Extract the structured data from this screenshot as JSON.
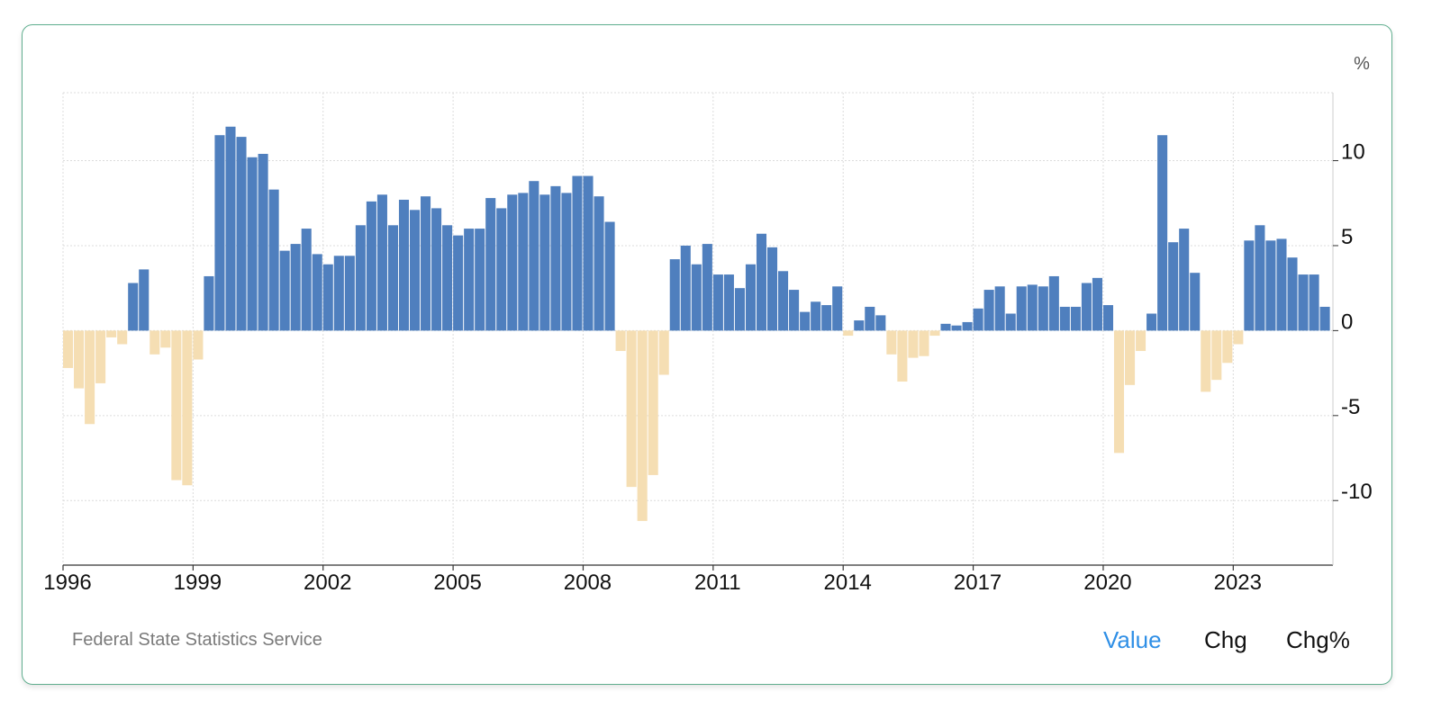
{
  "chart_data": {
    "type": "bar",
    "unit_label": "%",
    "x_ticks": [
      "1996",
      "1999",
      "2002",
      "2005",
      "2008",
      "2011",
      "2014",
      "2017",
      "2020",
      "2023"
    ],
    "y_ticks": [
      10,
      5,
      0,
      -5,
      -10
    ],
    "ylim": [
      -13.8,
      14
    ],
    "x_range": [
      1996.0,
      2025.3
    ],
    "frequency": "quarterly",
    "start": "1996-Q1",
    "grid": true,
    "positive_color": "#4f7fbe",
    "negative_color": "#f5deb3",
    "values": [
      -2.2,
      -3.4,
      -5.5,
      -3.1,
      -0.4,
      -0.8,
      2.8,
      3.6,
      -1.4,
      -1.0,
      -8.8,
      -9.1,
      -1.7,
      3.2,
      11.5,
      12.0,
      11.4,
      10.2,
      10.4,
      8.3,
      4.7,
      5.1,
      6.0,
      4.5,
      3.9,
      4.4,
      4.4,
      6.2,
      7.6,
      8.0,
      6.2,
      7.7,
      7.1,
      7.9,
      7.2,
      6.2,
      5.6,
      6.0,
      6.0,
      7.8,
      7.2,
      8.0,
      8.1,
      8.8,
      8.0,
      8.5,
      8.1,
      9.1,
      9.1,
      7.9,
      6.4,
      -1.2,
      -9.2,
      -11.2,
      -8.5,
      -2.6,
      4.2,
      5.0,
      3.9,
      5.1,
      3.3,
      3.3,
      2.5,
      3.9,
      5.7,
      4.9,
      3.5,
      2.4,
      1.1,
      1.7,
      1.5,
      2.6,
      -0.3,
      0.6,
      1.4,
      0.9,
      -1.4,
      -3.0,
      -1.6,
      -1.5,
      -0.3,
      0.4,
      0.3,
      0.5,
      1.3,
      2.4,
      2.6,
      1.0,
      2.6,
      2.7,
      2.6,
      3.2,
      1.4,
      1.4,
      2.8,
      3.1,
      1.5,
      -7.2,
      -3.2,
      -1.2,
      1.0,
      11.5,
      5.2,
      6.0,
      3.4,
      -3.6,
      -2.9,
      -1.9,
      -0.8,
      5.3,
      6.2,
      5.3,
      5.4,
      4.3,
      3.3,
      3.3,
      1.4
    ]
  },
  "source": "Federal State Statistics Service",
  "toggles": [
    {
      "label": "Value",
      "active": true
    },
    {
      "label": "Chg",
      "active": false
    },
    {
      "label": "Chg%",
      "active": false
    }
  ]
}
